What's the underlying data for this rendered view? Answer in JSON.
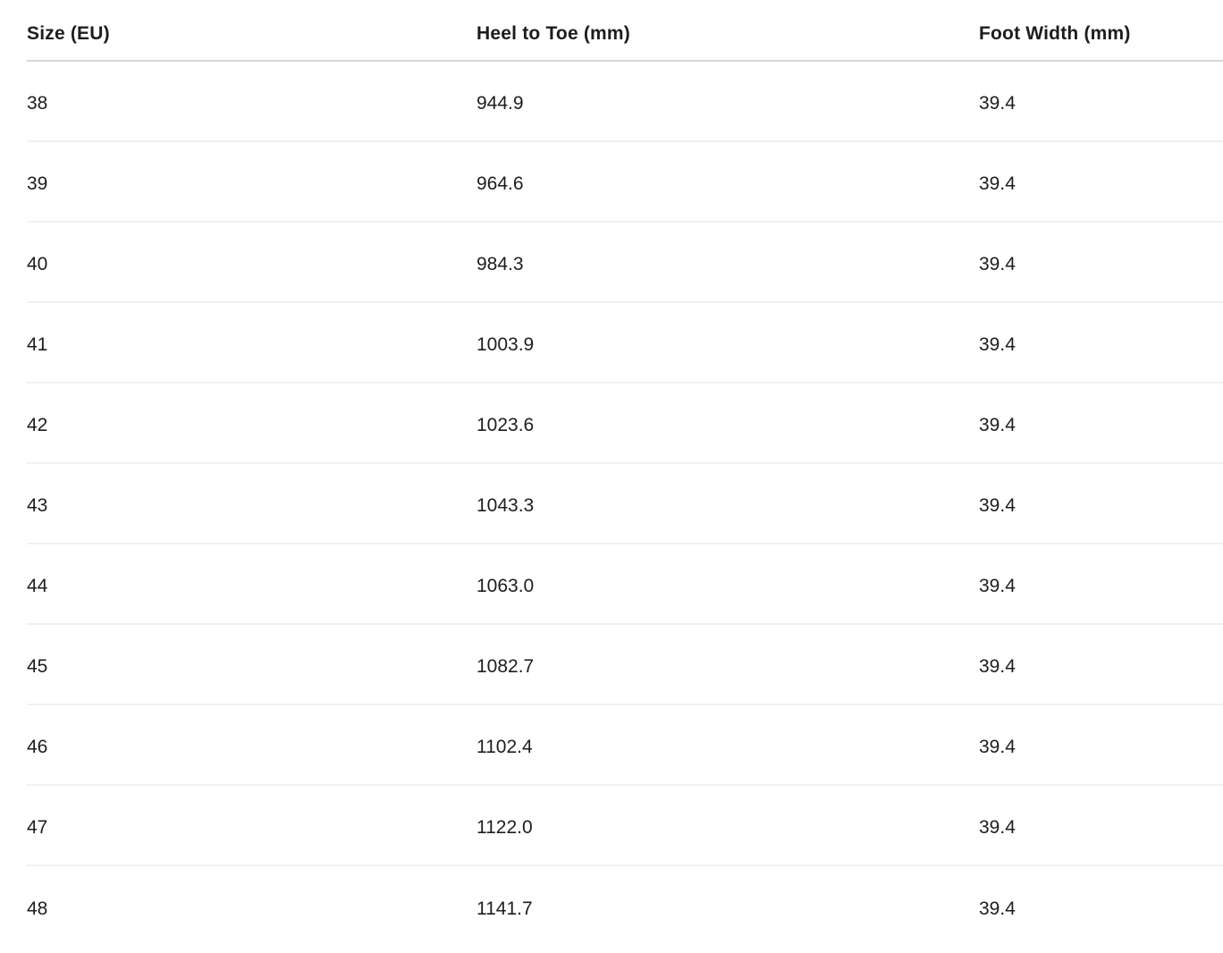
{
  "table": {
    "columns": [
      {
        "label": "Size (EU)"
      },
      {
        "label": "Heel to Toe (mm)"
      },
      {
        "label": "Foot Width (mm)"
      }
    ],
    "rows": [
      {
        "size": "38",
        "heel_to_toe": "944.9",
        "foot_width": "39.4"
      },
      {
        "size": "39",
        "heel_to_toe": "964.6",
        "foot_width": "39.4"
      },
      {
        "size": "40",
        "heel_to_toe": "984.3",
        "foot_width": "39.4"
      },
      {
        "size": "41",
        "heel_to_toe": "1003.9",
        "foot_width": "39.4"
      },
      {
        "size": "42",
        "heel_to_toe": "1023.6",
        "foot_width": "39.4"
      },
      {
        "size": "43",
        "heel_to_toe": "1043.3",
        "foot_width": "39.4"
      },
      {
        "size": "44",
        "heel_to_toe": "1063.0",
        "foot_width": "39.4"
      },
      {
        "size": "45",
        "heel_to_toe": "1082.7",
        "foot_width": "39.4"
      },
      {
        "size": "46",
        "heel_to_toe": "1102.4",
        "foot_width": "39.4"
      },
      {
        "size": "47",
        "heel_to_toe": "1122.0",
        "foot_width": "39.4"
      },
      {
        "size": "48",
        "heel_to_toe": "1141.7",
        "foot_width": "39.4"
      }
    ],
    "colors": {
      "text": "#1d1d1f",
      "header_divider": "#d7d7d7",
      "row_divider": "#f1f1f1",
      "background": "#ffffff"
    }
  }
}
